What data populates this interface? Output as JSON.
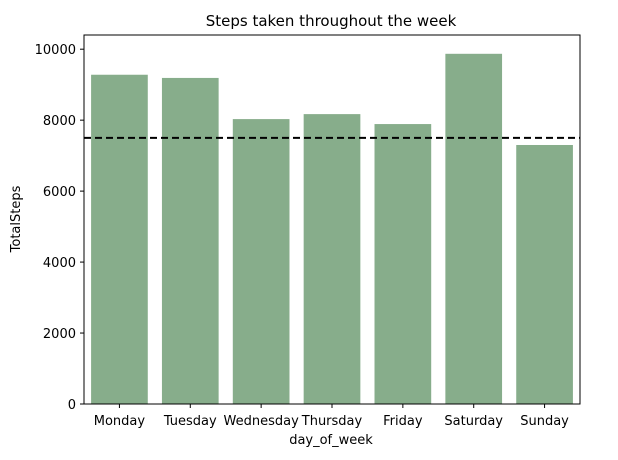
{
  "chart_data": {
    "type": "bar",
    "title": "Steps taken throughout the week",
    "xlabel": "day_of_week",
    "ylabel": "TotalSteps",
    "categories": [
      "Monday",
      "Tuesday",
      "Wednesday",
      "Thursday",
      "Friday",
      "Saturday",
      "Sunday"
    ],
    "values": [
      9280,
      9190,
      8030,
      8170,
      7890,
      9870,
      7300
    ],
    "ylim": [
      0,
      10400
    ],
    "yticks": [
      0,
      2000,
      4000,
      6000,
      8000,
      10000
    ],
    "reference_line": {
      "value": 7500,
      "style": "dashed",
      "color": "#000000"
    },
    "bar_color": "#87ad8b",
    "grid": false,
    "legend": "none"
  }
}
